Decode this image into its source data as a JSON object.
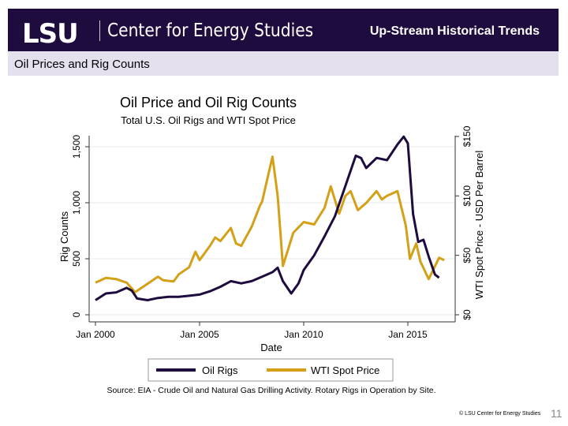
{
  "header": {
    "logo": "LSU",
    "org": "Center for Energy Studies",
    "title": "Up-Stream Historical Trends"
  },
  "subheader": {
    "title": "Oil Prices and Rig Counts"
  },
  "footer": {
    "copyright": "© LSU Center for Energy Studies",
    "page": "11"
  },
  "chart_data": {
    "type": "line",
    "title": "Oil Price and Oil Rig Counts",
    "subtitle": "Total U.S. Oil Rigs and WTI Spot Price",
    "xlabel": "Date",
    "ylabel": "Rig Counts",
    "y2label": "WTI Spot Price - USD Per Barrel",
    "xticks": [
      "Jan 2000",
      "Jan 2005",
      "Jan 2010",
      "Jan 2015"
    ],
    "yticks": [
      "0",
      "500",
      "1,000",
      "1,500"
    ],
    "y2ticks": [
      "$0",
      "$50",
      "$100",
      "$150"
    ],
    "xlim": [
      2000,
      2017
    ],
    "ylim": [
      0,
      1600
    ],
    "y2lim": [
      0,
      160
    ],
    "grid": true,
    "legend": "bottom",
    "source": "Source: EIA - Crude Oil and Natural Gas Drilling Activity. Rotary Rigs in Operation by Site.",
    "series": [
      {
        "name": "Oil Rigs",
        "axis": "left",
        "color": "#1e0c3f",
        "x": [
          2000,
          2000.5,
          2001,
          2001.5,
          2001.75,
          2002,
          2002.5,
          2003,
          2003.5,
          2004,
          2004.5,
          2005,
          2005.5,
          2006,
          2006.5,
          2007,
          2007.5,
          2008,
          2008.5,
          2008.75,
          2009,
          2009.4,
          2009.75,
          2010,
          2010.5,
          2011,
          2011.5,
          2012,
          2012.5,
          2012.75,
          2013,
          2013.5,
          2014,
          2014.5,
          2014.8,
          2015,
          2015.25,
          2015.5,
          2015.75,
          2016,
          2016.3,
          2016.5
        ],
        "values": [
          130,
          190,
          200,
          240,
          215,
          145,
          130,
          150,
          160,
          160,
          170,
          180,
          210,
          250,
          300,
          280,
          300,
          340,
          380,
          420,
          300,
          190,
          280,
          400,
          530,
          700,
          880,
          1150,
          1420,
          1400,
          1310,
          1400,
          1380,
          1520,
          1590,
          1530,
          900,
          650,
          670,
          520,
          360,
          330
        ]
      },
      {
        "name": "WTI Spot Price",
        "axis": "right",
        "color": "#d4a017",
        "x": [
          2000,
          2000.5,
          2001,
          2001.5,
          2001.9,
          2002.5,
          2003,
          2003.25,
          2003.75,
          2004,
          2004.5,
          2004.8,
          2005,
          2005.5,
          2005.75,
          2006,
          2006.5,
          2006.75,
          2007,
          2007.5,
          2007.9,
          2008,
          2008.5,
          2008.75,
          2009,
          2009.5,
          2010,
          2010.5,
          2011,
          2011.3,
          2011.7,
          2012,
          2012.25,
          2012.6,
          2013,
          2013.5,
          2013.75,
          2014,
          2014.5,
          2014.9,
          2015.1,
          2015.4,
          2015.6,
          2016,
          2016.5,
          2016.75
        ],
        "values": [
          27,
          31,
          30,
          27,
          19,
          26,
          32,
          29,
          28,
          34,
          40,
          53,
          46,
          58,
          65,
          62,
          73,
          60,
          58,
          74,
          92,
          95,
          133,
          100,
          41,
          69,
          78,
          76,
          90,
          108,
          85,
          100,
          104,
          88,
          94,
          104,
          97,
          100,
          104,
          75,
          47,
          60,
          45,
          30,
          48,
          46
        ]
      }
    ]
  }
}
